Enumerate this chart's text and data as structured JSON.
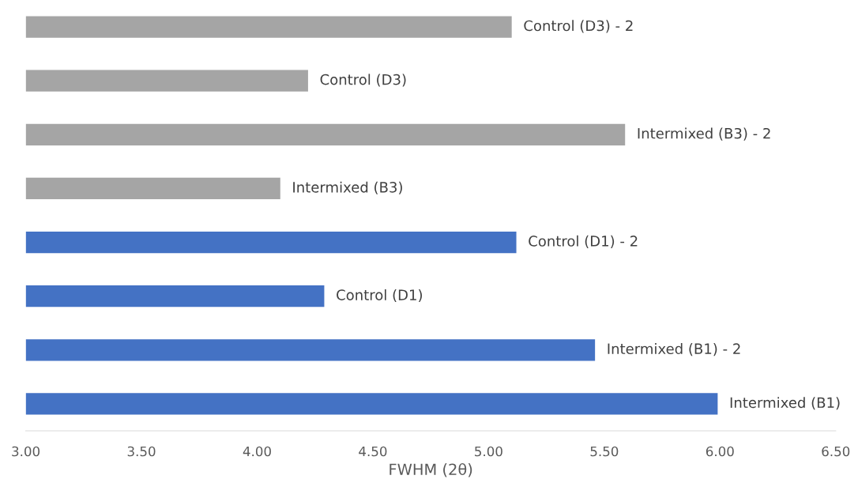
{
  "chart_data": {
    "type": "bar",
    "orientation": "horizontal",
    "xlabel": "FWHM (2θ)",
    "categories": [
      "Control (D3) - 2",
      "Control (D3)",
      "Intermixed (B3) - 2",
      "Intermixed (B3)",
      "Control (D1) - 2",
      "Control (D1)",
      "Intermixed (B1) - 2",
      "Intermixed (B1)"
    ],
    "values": [
      5.1,
      4.22,
      5.59,
      4.1,
      5.12,
      4.29,
      5.46,
      5.99
    ],
    "colors": [
      "#a5a5a5",
      "#a5a5a5",
      "#a5a5a5",
      "#a5a5a5",
      "#4472c4",
      "#4472c4",
      "#4472c4",
      "#4472c4"
    ],
    "xlim": [
      3.0,
      6.5
    ],
    "xticks": [
      {
        "value": 3.0,
        "label": "3.00"
      },
      {
        "value": 3.5,
        "label": "3.50"
      },
      {
        "value": 4.0,
        "label": "4.00"
      },
      {
        "value": 4.5,
        "label": "4.50"
      },
      {
        "value": 5.0,
        "label": "5.00"
      },
      {
        "value": 5.5,
        "label": "5.50"
      },
      {
        "value": 6.0,
        "label": "6.00"
      },
      {
        "value": 6.5,
        "label": "6.50"
      }
    ],
    "tick_labels": "x",
    "grid": false,
    "legend": false
  }
}
